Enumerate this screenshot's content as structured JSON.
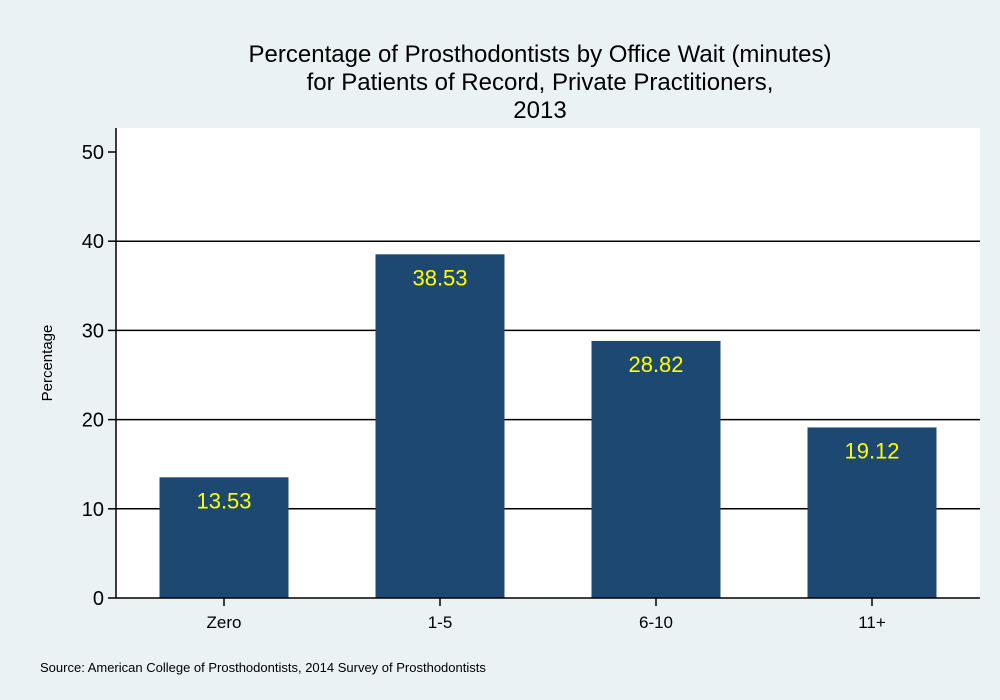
{
  "chart_data": {
    "type": "bar",
    "title_lines": [
      "Percentage of Prosthodontists by Office Wait (minutes)",
      "for Patients of Record, Private Practitioners,",
      "2013"
    ],
    "xlabel": "",
    "ylabel": "Percentage",
    "categories": [
      "Zero",
      "1-5",
      "6-10",
      "11+"
    ],
    "values": [
      13.53,
      38.53,
      28.82,
      19.12
    ],
    "data_labels": [
      "13.53",
      "38.53",
      "28.82",
      "19.12"
    ],
    "yticks": [
      0,
      10,
      20,
      30,
      40,
      50
    ],
    "ytick_labels": [
      "0",
      "10",
      "20",
      "30",
      "40",
      "50"
    ],
    "ylim": [
      0,
      50
    ],
    "grid": true,
    "legend": "none",
    "bar_color": "#1d4871",
    "label_color": "#ffff00",
    "plot_background": "#ffffff",
    "page_background": "#eaf2f3",
    "source": "Source: American College of Prosthodontists, 2014 Survey of Prosthodontists"
  }
}
